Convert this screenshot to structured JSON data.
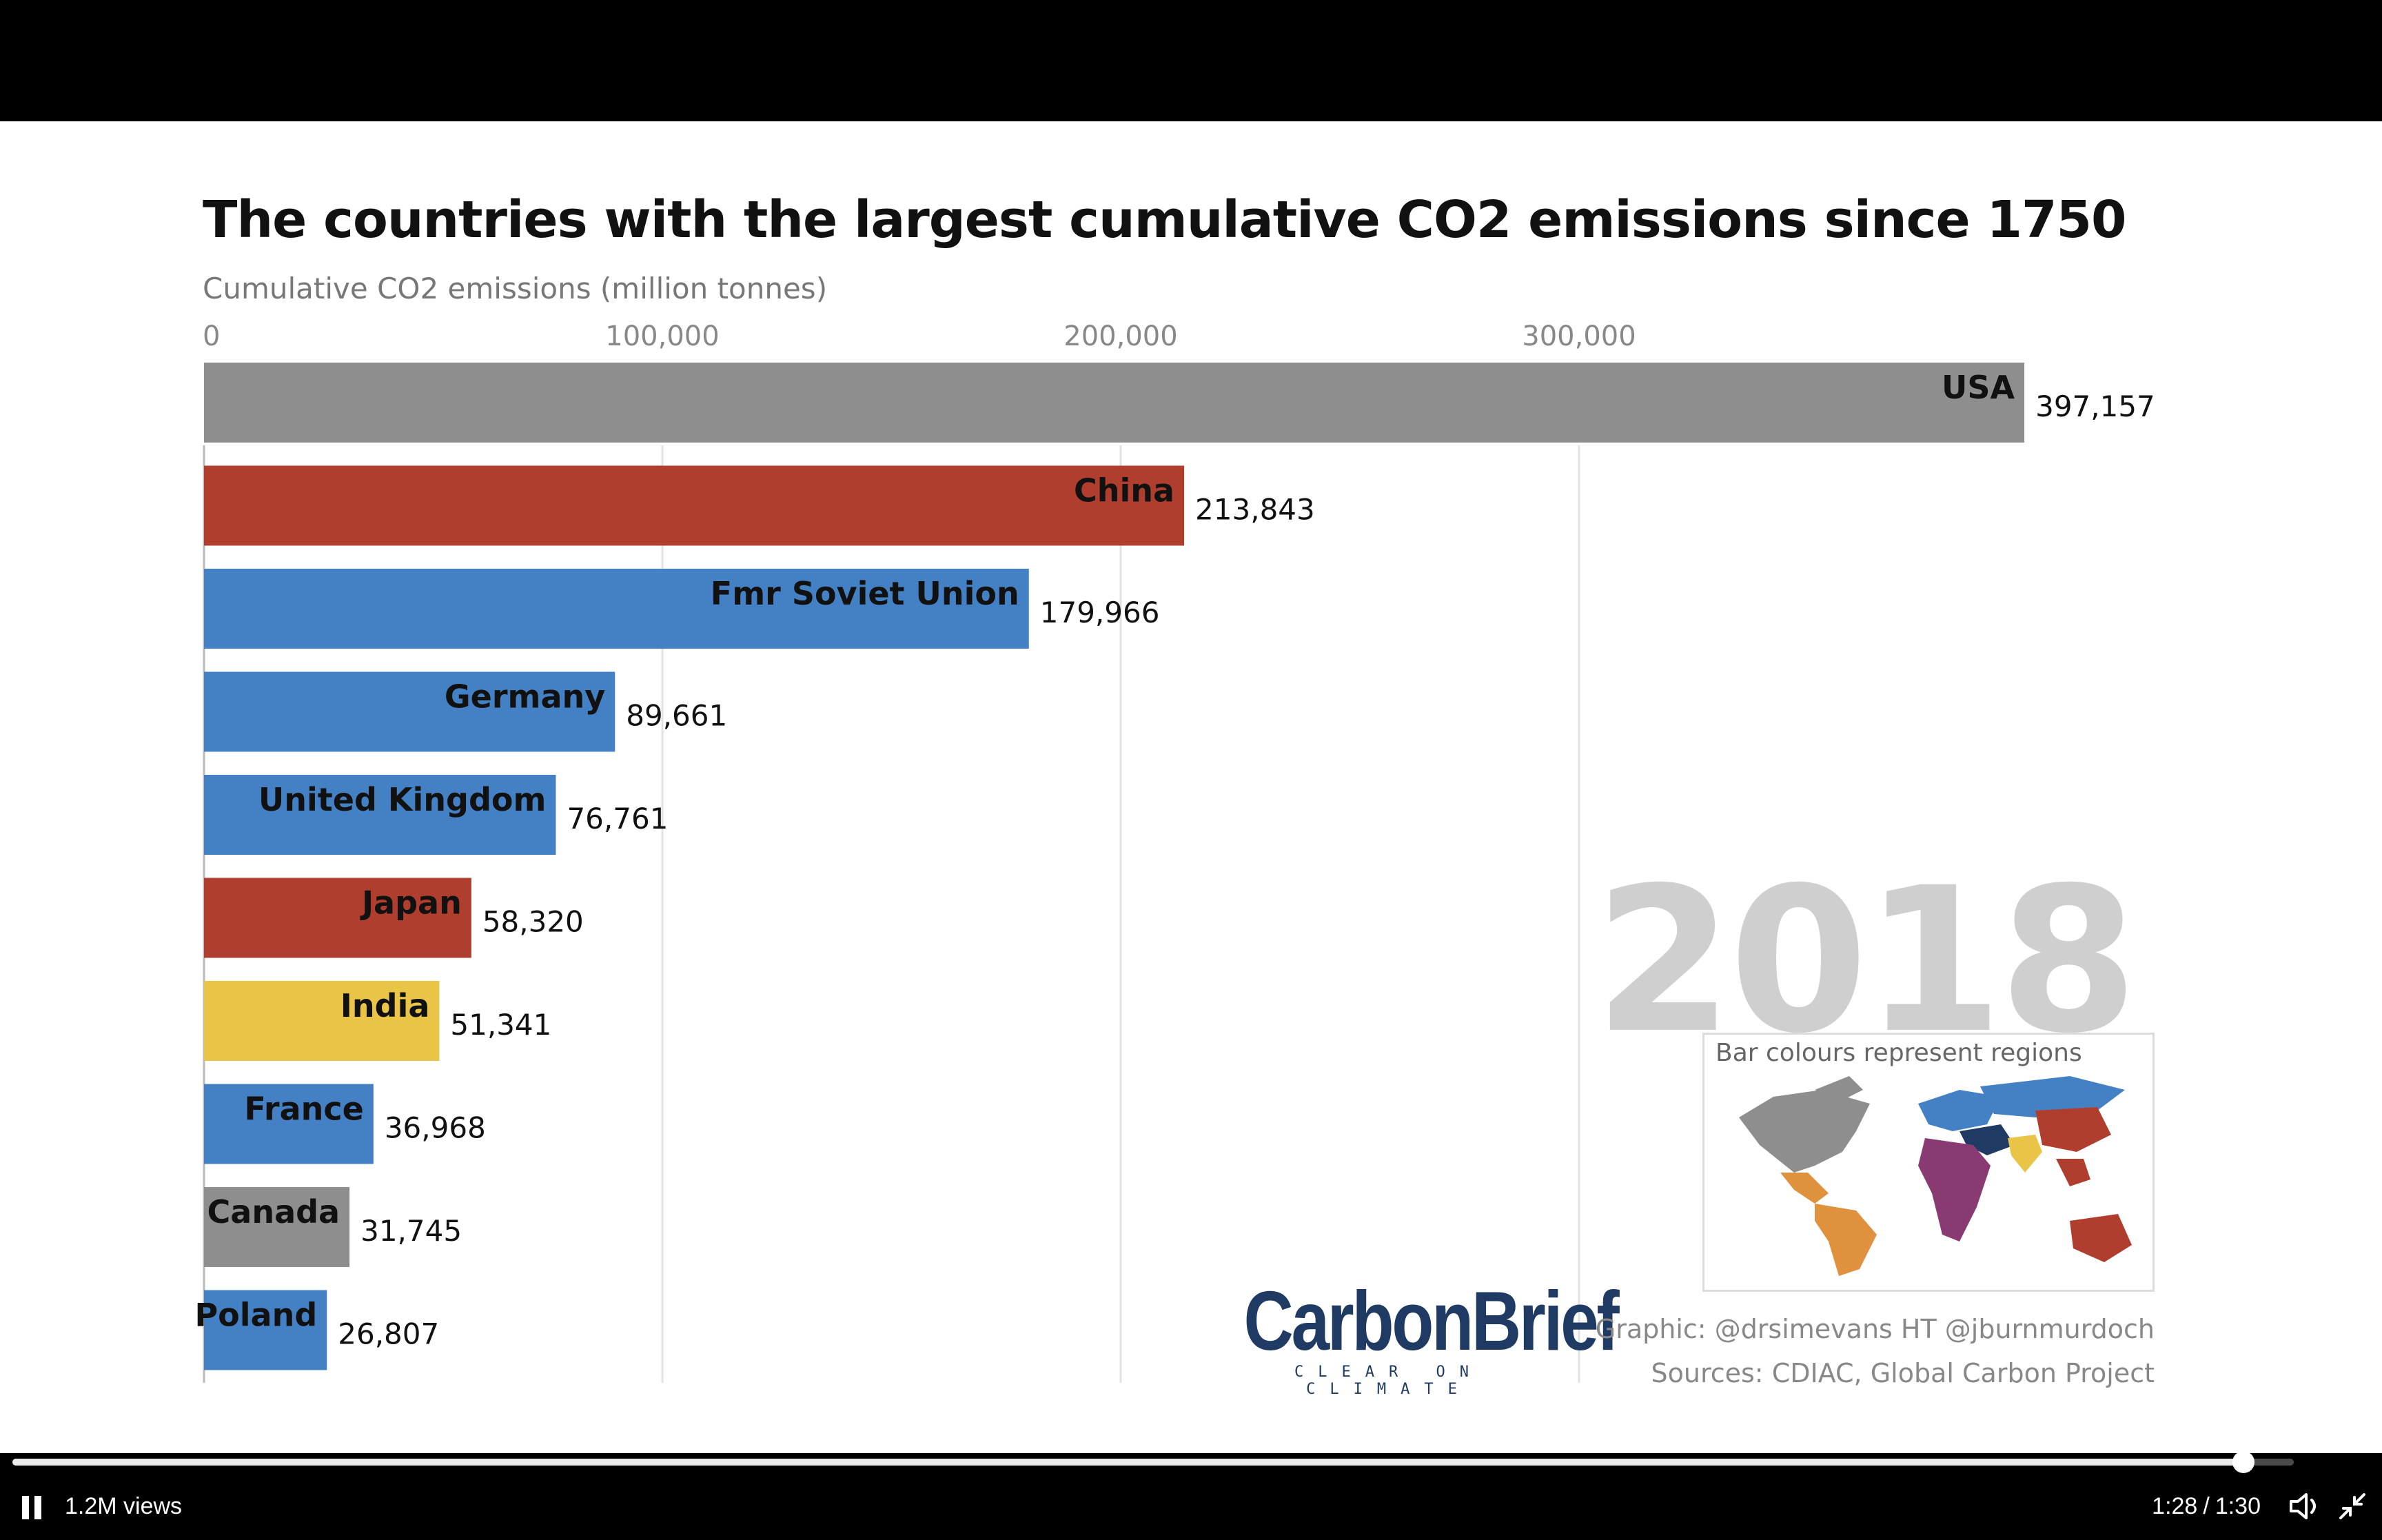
{
  "video": {
    "views": "1.2M views",
    "current_time": "1:28",
    "duration": "1:30",
    "progress": 0.978
  },
  "colors": {
    "gray": "#8e8e8e",
    "red": "#b03e2e",
    "blue": "#4481c4",
    "yellow": "#eac446",
    "year_text": "#cfcfcf",
    "brand": "#1f3b63"
  },
  "chart_data": {
    "type": "bar",
    "orientation": "horizontal",
    "title": "The countries with the largest cumulative CO2 emissions since 1750",
    "xlabel": "Cumulative CO2 emissions (million tonnes)",
    "xlim": [
      0,
      400000
    ],
    "xticks": [
      0,
      100000,
      200000,
      300000
    ],
    "xtick_labels": [
      "0",
      "100,000",
      "200,000",
      "300,000"
    ],
    "grid": true,
    "categories": [
      "USA",
      "China",
      "Fmr Soviet Union",
      "Germany",
      "United Kingdom",
      "Japan",
      "India",
      "France",
      "Canada",
      "Poland"
    ],
    "values": [
      397157,
      213843,
      179966,
      89661,
      76761,
      58320,
      51341,
      36968,
      31745,
      26807
    ],
    "value_labels": [
      "397,157",
      "213,843",
      "179,966",
      "89,661",
      "76,761",
      "58,320",
      "51,341",
      "36,968",
      "31,745",
      "26,807"
    ],
    "bar_colors": [
      "#8e8e8e",
      "#b03e2e",
      "#4481c4",
      "#4481c4",
      "#4481c4",
      "#b03e2e",
      "#eac446",
      "#4481c4",
      "#8e8e8e",
      "#4481c4"
    ],
    "year": "2018",
    "map_caption": "Bar colours represent regions"
  },
  "branding": {
    "logo": "CarbonBrief",
    "tagline": "CLEAR ON CLIMATE"
  },
  "credits": {
    "graphic": "Graphic: @drsimevans HT @jburnmurdoch",
    "sources": "Sources: CDIAC, Global Carbon Project"
  }
}
